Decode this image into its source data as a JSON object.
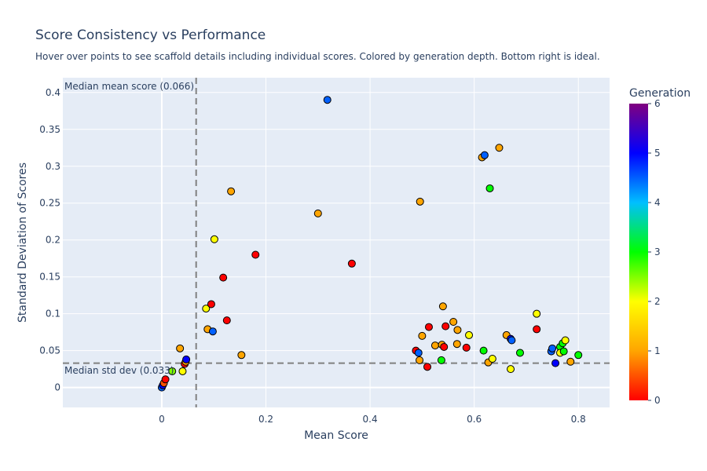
{
  "chart_data": {
    "type": "scatter",
    "title": "Score Consistency vs Performance",
    "subtitle": "Hover over points to see scaffold details including individual scores. Colored by generation depth. Bottom right is ideal.",
    "xlabel": "Mean Score",
    "ylabel": "Standard Deviation of Scores",
    "xlim": [
      -0.19,
      0.86
    ],
    "ylim": [
      -0.027,
      0.42
    ],
    "xticks": [
      0,
      0.2,
      0.4,
      0.6,
      0.8
    ],
    "xtick_labels": [
      "0",
      "0.2",
      "0.4",
      "0.6",
      "0.8"
    ],
    "yticks": [
      0,
      0.05,
      0.1,
      0.15,
      0.2,
      0.25,
      0.3,
      0.35,
      0.4
    ],
    "ytick_labels": [
      "0",
      "0.05",
      "0.1",
      "0.15",
      "0.2",
      "0.25",
      "0.3",
      "0.35",
      "0.4"
    ],
    "grid": true,
    "plot_background": "#e5ecf6",
    "reference_lines": {
      "median_mean_score": 0.066,
      "median_std_dev": 0.033,
      "median_mean_label": "Median mean score (0.066)",
      "median_std_label": "Median std dev (0.033)",
      "line_color": "#808080"
    },
    "colorbar": {
      "title": "Generation",
      "range": [
        0,
        6
      ],
      "ticks": [
        0,
        1,
        2,
        3,
        4,
        5,
        6
      ],
      "tick_labels": [
        "0",
        "1",
        "2",
        "3",
        "4",
        "5",
        "6"
      ],
      "colorscale": [
        "#ff0000",
        "#ffa500",
        "#ffff00",
        "#00ff00",
        "#00bfff",
        "#0000ff",
        "#800080"
      ]
    },
    "points": [
      {
        "x": 0.0,
        "y": 0.0,
        "generation": 4.5
      },
      {
        "x": 0.002,
        "y": 0.003,
        "generation": 5.0
      },
      {
        "x": 0.004,
        "y": 0.006,
        "generation": 0.5
      },
      {
        "x": 0.007,
        "y": 0.011,
        "generation": 0.0
      },
      {
        "x": 0.02,
        "y": 0.022,
        "generation": 2.5
      },
      {
        "x": 0.035,
        "y": 0.053,
        "generation": 1.0
      },
      {
        "x": 0.04,
        "y": 0.022,
        "generation": 2.0
      },
      {
        "x": 0.044,
        "y": 0.032,
        "generation": 0.0
      },
      {
        "x": 0.046,
        "y": 0.035,
        "generation": 1.0
      },
      {
        "x": 0.047,
        "y": 0.038,
        "generation": 5.0
      },
      {
        "x": 0.085,
        "y": 0.107,
        "generation": 2.0
      },
      {
        "x": 0.088,
        "y": 0.079,
        "generation": 1.0
      },
      {
        "x": 0.095,
        "y": 0.113,
        "generation": 0.0
      },
      {
        "x": 0.098,
        "y": 0.076,
        "generation": 4.5
      },
      {
        "x": 0.101,
        "y": 0.201,
        "generation": 2.0
      },
      {
        "x": 0.118,
        "y": 0.149,
        "generation": 0.0
      },
      {
        "x": 0.125,
        "y": 0.091,
        "generation": 0.0
      },
      {
        "x": 0.133,
        "y": 0.266,
        "generation": 1.0
      },
      {
        "x": 0.153,
        "y": 0.044,
        "generation": 1.0
      },
      {
        "x": 0.18,
        "y": 0.18,
        "generation": 0.0
      },
      {
        "x": 0.3,
        "y": 0.236,
        "generation": 1.0
      },
      {
        "x": 0.318,
        "y": 0.39,
        "generation": 4.5
      },
      {
        "x": 0.365,
        "y": 0.168,
        "generation": 0.0
      },
      {
        "x": 0.488,
        "y": 0.05,
        "generation": 0.0
      },
      {
        "x": 0.493,
        "y": 0.047,
        "generation": 4.5
      },
      {
        "x": 0.495,
        "y": 0.037,
        "generation": 1.0
      },
      {
        "x": 0.496,
        "y": 0.252,
        "generation": 1.0
      },
      {
        "x": 0.5,
        "y": 0.07,
        "generation": 1.0
      },
      {
        "x": 0.51,
        "y": 0.028,
        "generation": 0.0
      },
      {
        "x": 0.513,
        "y": 0.082,
        "generation": 0.0
      },
      {
        "x": 0.525,
        "y": 0.057,
        "generation": 1.0
      },
      {
        "x": 0.537,
        "y": 0.037,
        "generation": 3.0
      },
      {
        "x": 0.538,
        "y": 0.058,
        "generation": 1.0
      },
      {
        "x": 0.54,
        "y": 0.11,
        "generation": 1.0
      },
      {
        "x": 0.542,
        "y": 0.055,
        "generation": 0.0
      },
      {
        "x": 0.545,
        "y": 0.083,
        "generation": 0.0
      },
      {
        "x": 0.56,
        "y": 0.089,
        "generation": 1.0
      },
      {
        "x": 0.567,
        "y": 0.059,
        "generation": 1.0
      },
      {
        "x": 0.568,
        "y": 0.078,
        "generation": 1.0
      },
      {
        "x": 0.585,
        "y": 0.054,
        "generation": 0.0
      },
      {
        "x": 0.59,
        "y": 0.071,
        "generation": 2.0
      },
      {
        "x": 0.615,
        "y": 0.312,
        "generation": 1.0
      },
      {
        "x": 0.618,
        "y": 0.05,
        "generation": 3.0
      },
      {
        "x": 0.62,
        "y": 0.315,
        "generation": 4.5
      },
      {
        "x": 0.627,
        "y": 0.034,
        "generation": 1.0
      },
      {
        "x": 0.63,
        "y": 0.27,
        "generation": 3.0
      },
      {
        "x": 0.635,
        "y": 0.039,
        "generation": 2.0
      },
      {
        "x": 0.648,
        "y": 0.325,
        "generation": 1.0
      },
      {
        "x": 0.662,
        "y": 0.071,
        "generation": 1.0
      },
      {
        "x": 0.67,
        "y": 0.066,
        "generation": 5.0
      },
      {
        "x": 0.67,
        "y": 0.025,
        "generation": 2.0
      },
      {
        "x": 0.672,
        "y": 0.064,
        "generation": 4.5
      },
      {
        "x": 0.688,
        "y": 0.047,
        "generation": 3.0
      },
      {
        "x": 0.72,
        "y": 0.1,
        "generation": 2.0
      },
      {
        "x": 0.72,
        "y": 0.079,
        "generation": 0.0
      },
      {
        "x": 0.748,
        "y": 0.049,
        "generation": 4.5
      },
      {
        "x": 0.75,
        "y": 0.053,
        "generation": 4.5
      },
      {
        "x": 0.756,
        "y": 0.033,
        "generation": 5.0
      },
      {
        "x": 0.765,
        "y": 0.055,
        "generation": 3.0
      },
      {
        "x": 0.765,
        "y": 0.047,
        "generation": 2.0
      },
      {
        "x": 0.77,
        "y": 0.06,
        "generation": 3.0
      },
      {
        "x": 0.772,
        "y": 0.049,
        "generation": 3.0
      },
      {
        "x": 0.775,
        "y": 0.064,
        "generation": 2.0
      },
      {
        "x": 0.785,
        "y": 0.035,
        "generation": 1.0
      },
      {
        "x": 0.8,
        "y": 0.044,
        "generation": 3.0
      }
    ]
  }
}
